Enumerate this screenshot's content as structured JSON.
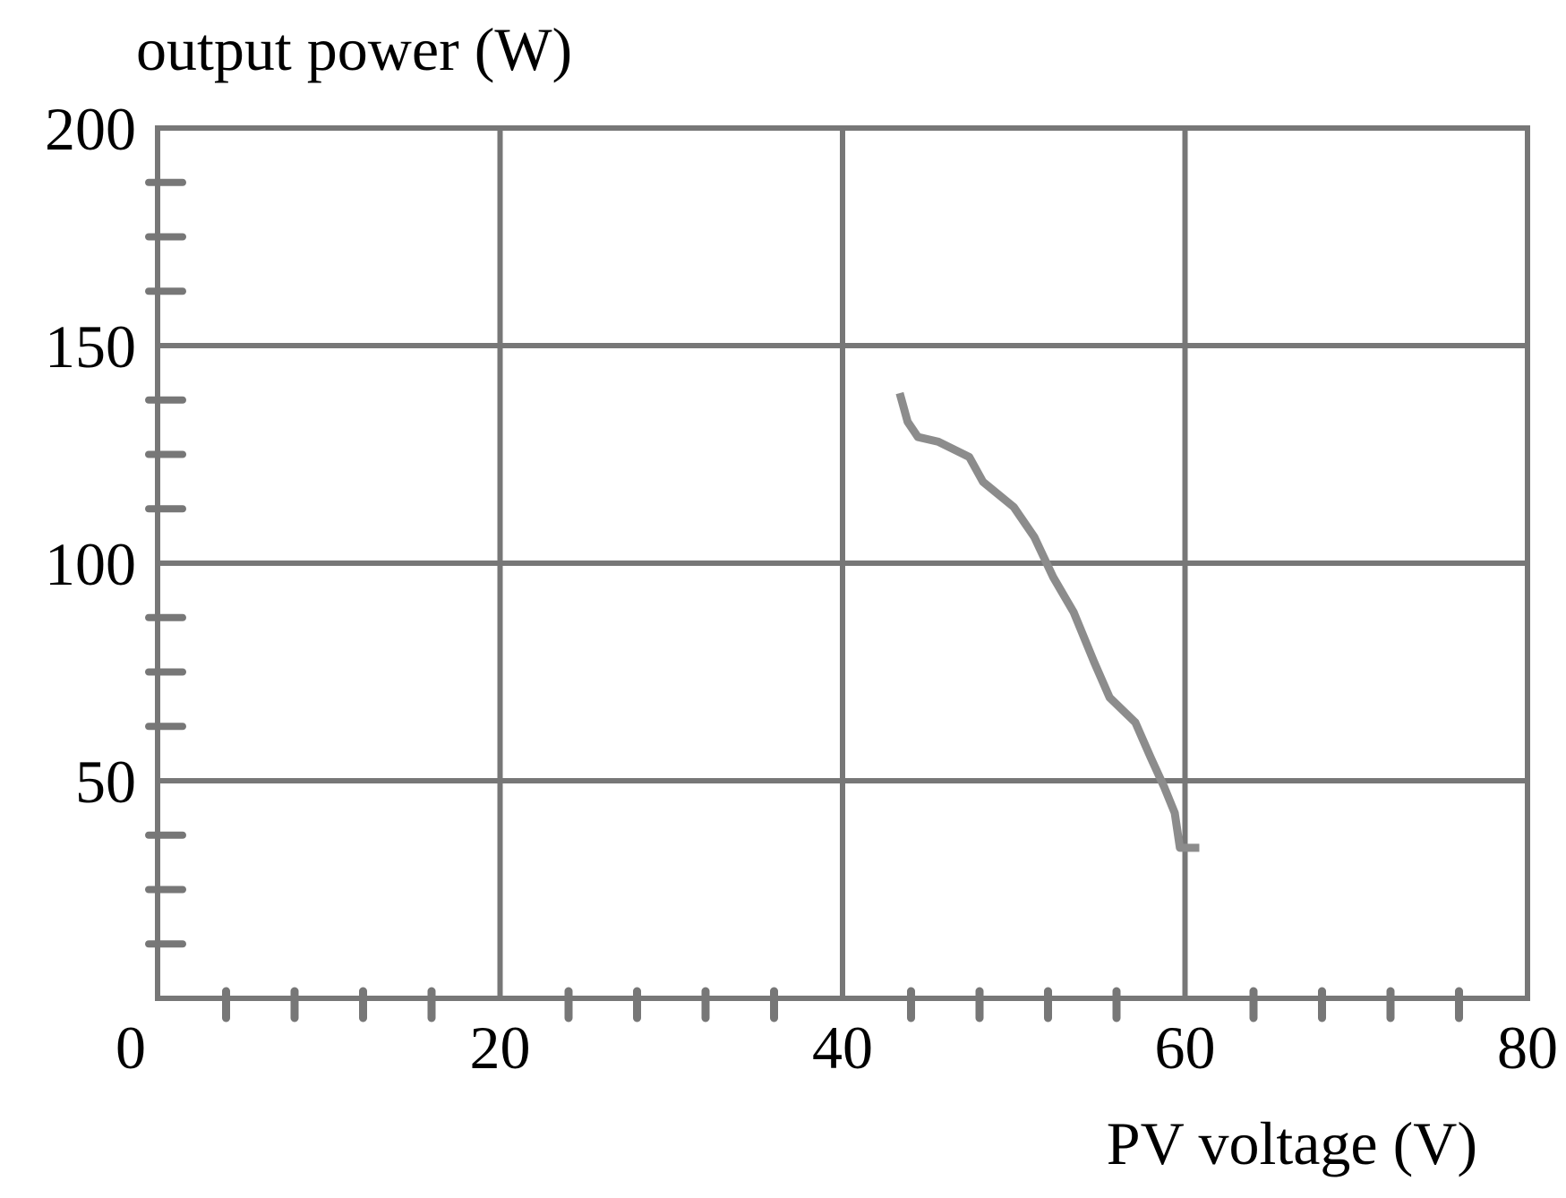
{
  "chart_data": {
    "type": "line",
    "y_label": "output power (W)",
    "x_label": "PV voltage (V)",
    "xlim": [
      0,
      80
    ],
    "ylim": [
      0,
      200
    ],
    "xticks": [
      0,
      20,
      40,
      60,
      80
    ],
    "yticks": [
      50,
      100,
      150,
      200
    ],
    "xminorticks": [
      4,
      8,
      12,
      16,
      24,
      28,
      32,
      36,
      44,
      48,
      52,
      56,
      64,
      68,
      72,
      76
    ],
    "yminorticks": [
      12.5,
      25,
      37.5,
      62.5,
      75,
      87.5,
      112.5,
      125,
      137.5,
      162.5,
      175,
      187.5
    ],
    "grid": true,
    "grid_color": "#777777",
    "series": [
      {
        "color": "#8c8c8c",
        "x": [
          43.4,
          43.8,
          44.4,
          45.6,
          47.4,
          48.2,
          50,
          51.2,
          52.3,
          53.5,
          54.7,
          55.6,
          57.1,
          58,
          58.8,
          59.4,
          59.7,
          60.6
        ],
        "values": [
          138.2,
          132.5,
          129,
          127.9,
          124.4,
          118.7,
          112.9,
          106,
          96.8,
          88.7,
          77.2,
          69.1,
          63.4,
          55.3,
          48.4,
          42.6,
          34.6,
          34.6
        ]
      }
    ]
  }
}
